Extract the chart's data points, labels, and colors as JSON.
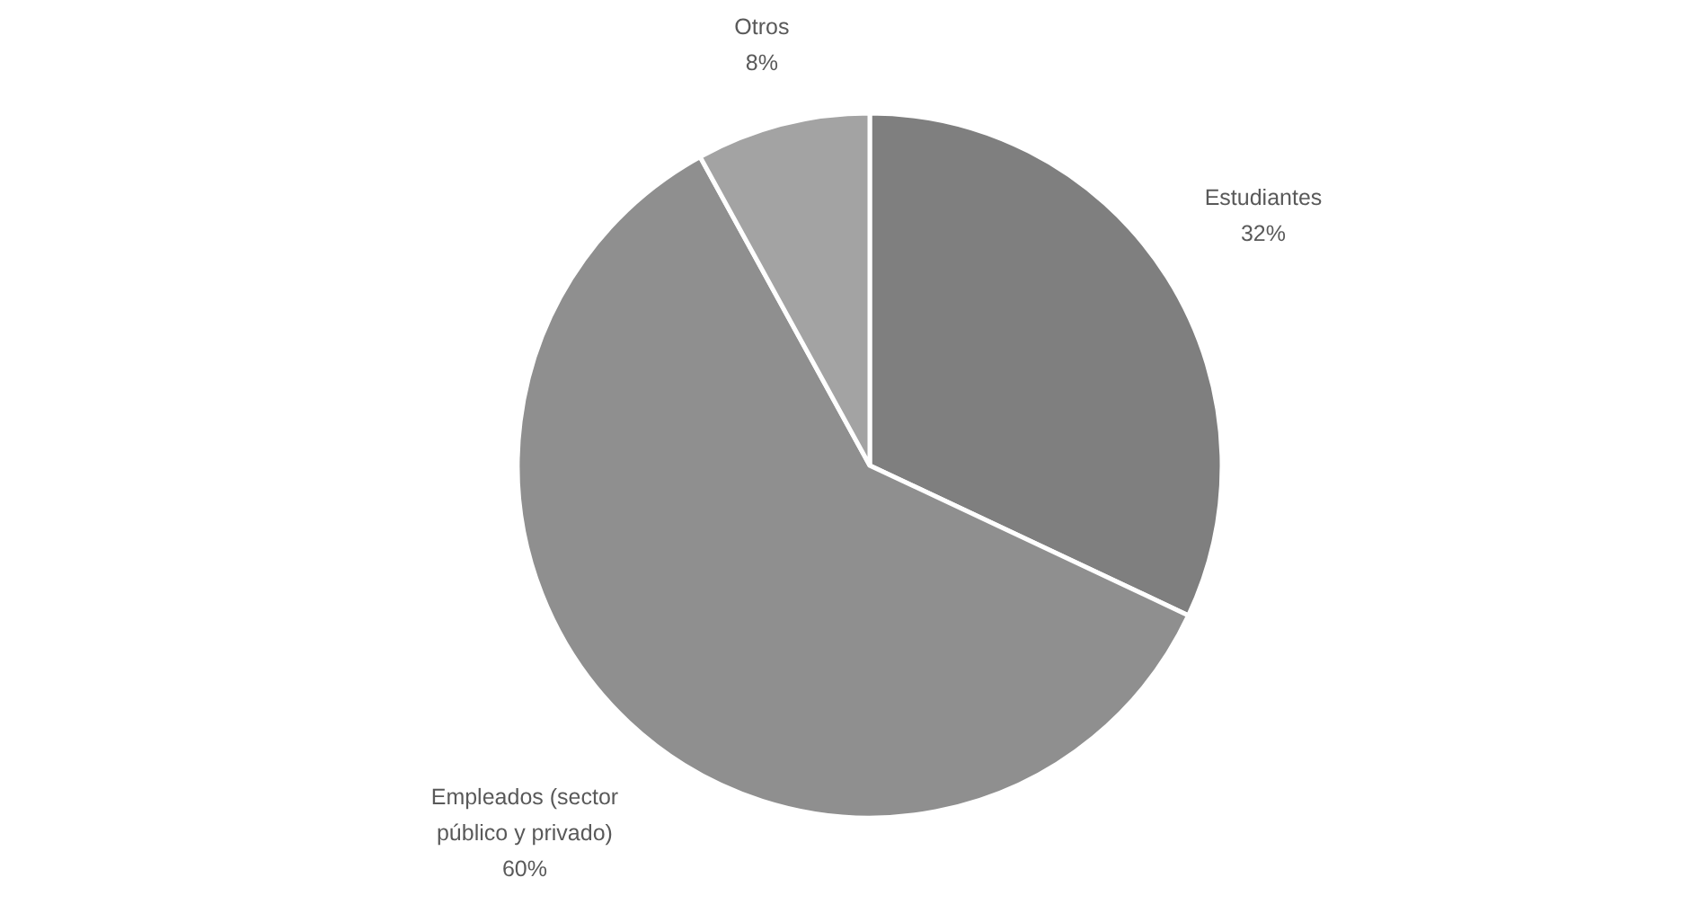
{
  "chart_data": {
    "type": "pie",
    "categories": [
      "Estudiantes",
      "Empleados (sector público y privado)",
      "Otros"
    ],
    "values": [
      32,
      60,
      8
    ],
    "colors": [
      "#7f7f7f",
      "#8f8f8f",
      "#a3a3a3"
    ],
    "value_labels": [
      "32%",
      "60%",
      "8%"
    ],
    "legend": false
  }
}
